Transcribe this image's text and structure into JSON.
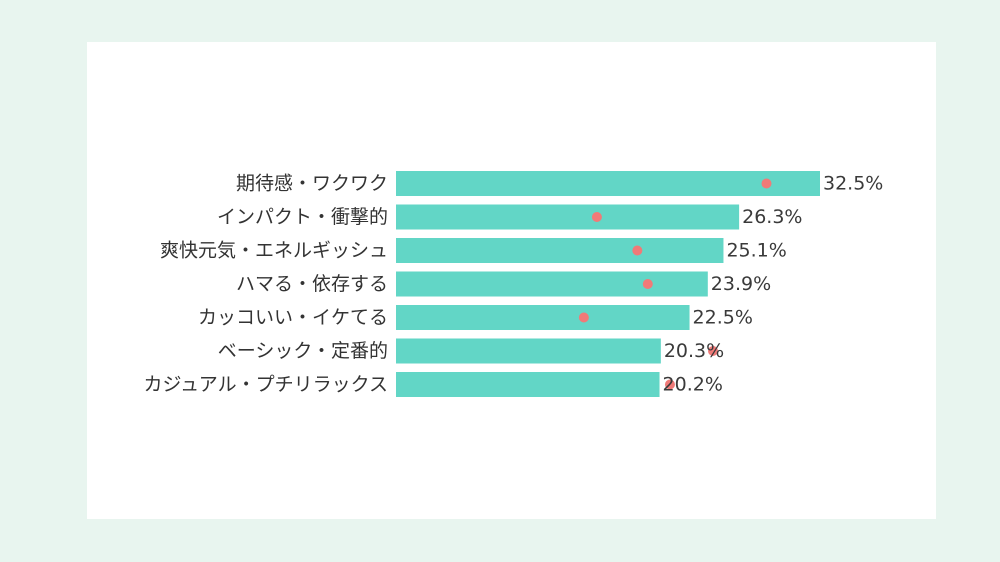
{
  "colors": {
    "page_background": "#e8f5ef",
    "card_background": "#ffffff",
    "bar": "#62d6c6",
    "marker": "#f07a78",
    "text": "#333333"
  },
  "chart_data": {
    "type": "bar",
    "orientation": "horizontal",
    "categories": [
      "期待感・ワクワク",
      "インパクト・衝撃的",
      "爽快元気・エネルギッシュ",
      "ハマる・依存する",
      "カッコいい・イケてる",
      "ベーシック・定番的",
      "カジュアル・プチリラックス"
    ],
    "series": [
      {
        "type": "bar",
        "values": [
          32.5,
          26.3,
          25.1,
          23.9,
          22.5,
          20.3,
          20.2
        ],
        "value_labels": [
          "32.5%",
          "26.3%",
          "25.1%",
          "23.9%",
          "22.5%",
          "20.3%",
          "20.2%"
        ]
      },
      {
        "type": "scatter",
        "values": [
          28.4,
          15.4,
          18.5,
          19.3,
          14.4,
          24.3,
          21.0
        ]
      }
    ],
    "xlim": [
      0,
      32.5
    ],
    "grid": false,
    "legend": "none"
  }
}
